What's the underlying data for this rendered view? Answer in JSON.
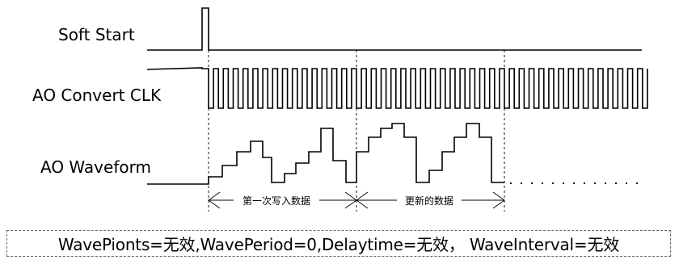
{
  "signals": {
    "soft_start": "Soft Start",
    "ao_convert_clk": "AO Convert CLK",
    "ao_waveform": "AO Waveform"
  },
  "segments": {
    "first_write": "第一次写入数据",
    "updated": "更新的数据"
  },
  "note": {
    "text": "WavePionts=无效,WavePeriod=0,Delaytime=无效， WaveInterval=无效"
  }
}
